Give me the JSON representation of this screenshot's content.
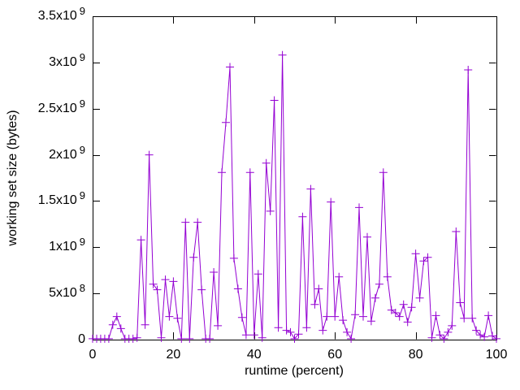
{
  "figure": {
    "background_color": "#ffffff",
    "border_color": "#000000",
    "text_color": "#000000"
  },
  "chart_data": {
    "type": "line",
    "style": "linespoints",
    "marker": "plus",
    "series_color": "#9400D3",
    "title": "",
    "xlabel": "runtime (percent)",
    "ylabel": "working set size (bytes)",
    "xlim": [
      0,
      100
    ],
    "ylim": [
      0,
      3500000000.0
    ],
    "grid": false,
    "legend": "none",
    "xticks": {
      "values": [
        0,
        20,
        40,
        60,
        80,
        100
      ],
      "labels": [
        "0",
        "20",
        "40",
        "60",
        "80",
        "100"
      ]
    },
    "yticks": {
      "values": [
        0,
        500000000.0,
        1000000000.0,
        1500000000.0,
        2000000000.0,
        2500000000.0,
        3000000000.0,
        3500000000.0
      ],
      "labels": [
        "0",
        "5x10^8",
        "1x10^9",
        "1.5x10^9",
        "2x10^9",
        "2.5x10^9",
        "3x10^9",
        "3.5x10^9"
      ]
    },
    "x": [
      0,
      1,
      2,
      3,
      4,
      5,
      6,
      7,
      8,
      9,
      10,
      11,
      12,
      13,
      14,
      15,
      16,
      17,
      18,
      19,
      20,
      21,
      22,
      23,
      24,
      25,
      26,
      27,
      28,
      29,
      30,
      31,
      32,
      33,
      34,
      35,
      36,
      37,
      38,
      39,
      40,
      41,
      42,
      43,
      44,
      45,
      46,
      47,
      48,
      49,
      50,
      51,
      52,
      53,
      54,
      55,
      56,
      57,
      58,
      59,
      60,
      61,
      62,
      63,
      64,
      65,
      66,
      67,
      68,
      69,
      70,
      71,
      72,
      73,
      74,
      75,
      76,
      77,
      78,
      79,
      80,
      81,
      82,
      83,
      84,
      85,
      86,
      87,
      88,
      89,
      90,
      91,
      92,
      93,
      94,
      95,
      96,
      97,
      98,
      99,
      100
    ],
    "values": [
      10000000.0,
      10000000.0,
      10000000.0,
      10000000.0,
      10000000.0,
      160000000.0,
      250000000.0,
      120000000.0,
      10000000.0,
      10000000.0,
      10000000.0,
      20000000.0,
      1080000000.0,
      160000000.0,
      2000000000.0,
      600000000.0,
      540000000.0,
      20000000.0,
      650000000.0,
      250000000.0,
      630000000.0,
      230000000.0,
      10000000.0,
      1270000000.0,
      10000000.0,
      890000000.0,
      1270000000.0,
      540000000.0,
      10000000.0,
      10000000.0,
      730000000.0,
      150000000.0,
      1810000000.0,
      2350000000.0,
      2950000000.0,
      880000000.0,
      550000000.0,
      240000000.0,
      50000000.0,
      1810000000.0,
      50000000.0,
      710000000.0,
      20000000.0,
      1910000000.0,
      1390000000.0,
      2590000000.0,
      130000000.0,
      3080000000.0,
      100000000.0,
      80000000.0,
      10000000.0,
      60000000.0,
      1330000000.0,
      130000000.0,
      1630000000.0,
      380000000.0,
      550000000.0,
      100000000.0,
      250000000.0,
      1490000000.0,
      250000000.0,
      680000000.0,
      210000000.0,
      80000000.0,
      10000000.0,
      270000000.0,
      1430000000.0,
      250000000.0,
      1110000000.0,
      200000000.0,
      450000000.0,
      600000000.0,
      1810000000.0,
      680000000.0,
      320000000.0,
      290000000.0,
      250000000.0,
      380000000.0,
      190000000.0,
      350000000.0,
      930000000.0,
      450000000.0,
      850000000.0,
      890000000.0,
      20000000.0,
      260000000.0,
      50000000.0,
      10000000.0,
      80000000.0,
      150000000.0,
      1170000000.0,
      400000000.0,
      230000000.0,
      2920000000.0,
      230000000.0,
      100000000.0,
      50000000.0,
      30000000.0,
      260000000.0,
      40000000.0,
      10000000.0
    ]
  }
}
